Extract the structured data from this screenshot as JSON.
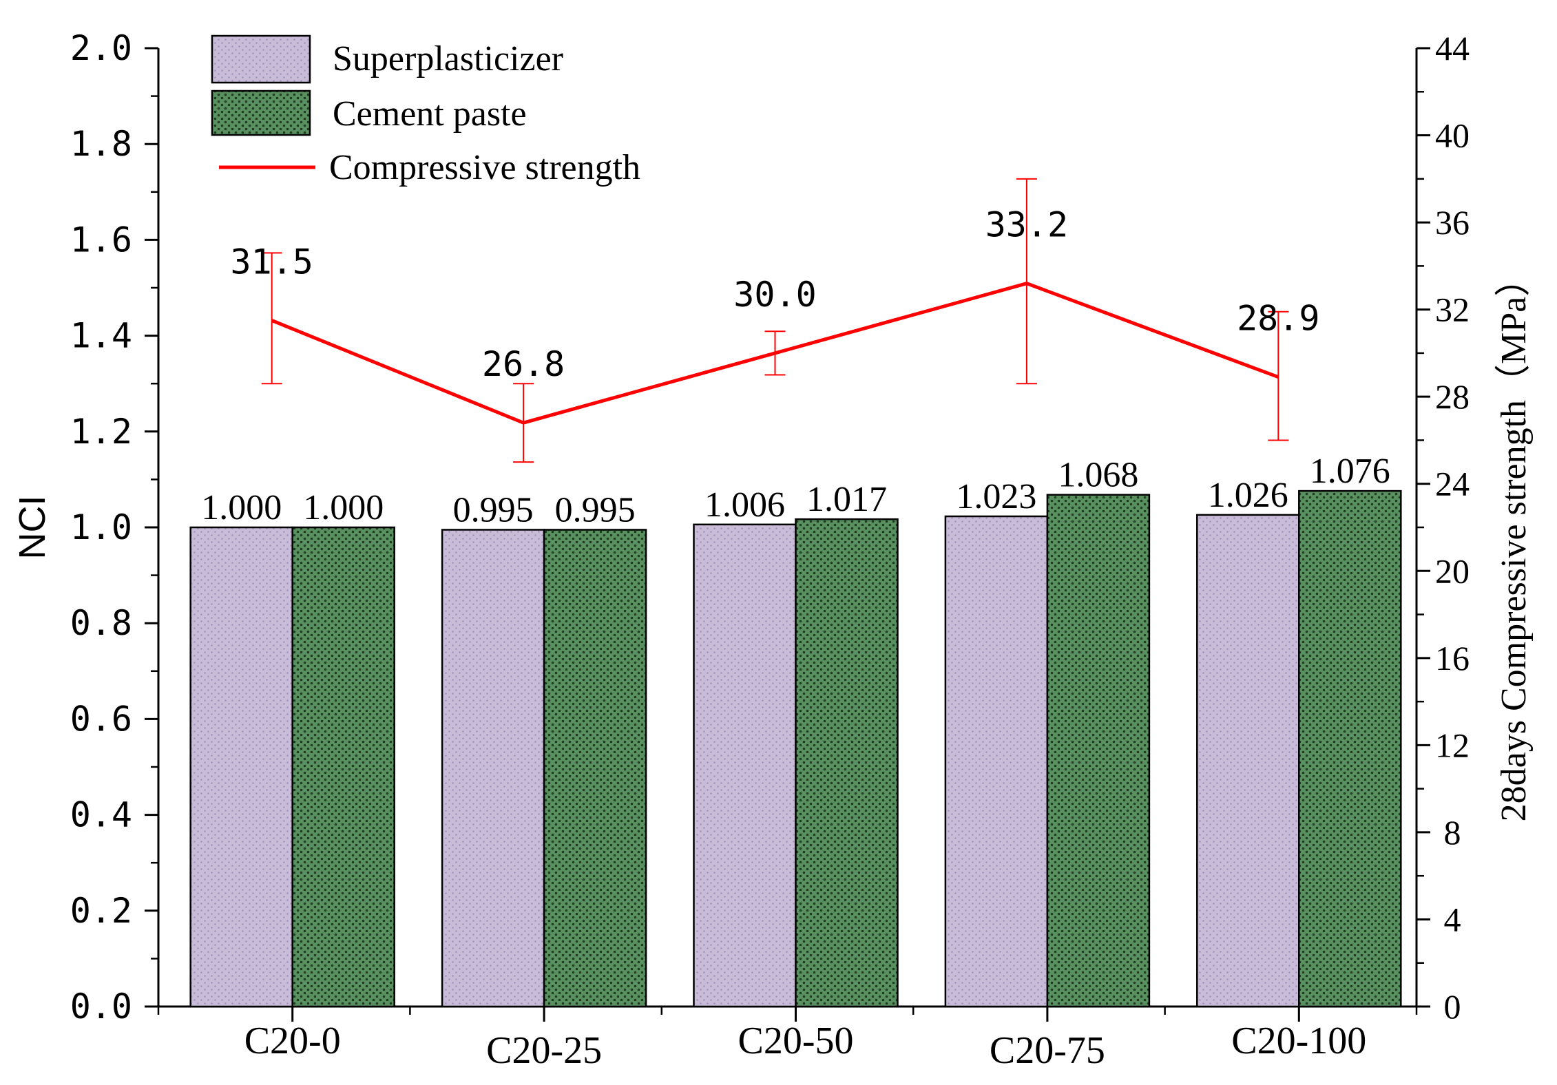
{
  "chart_data": {
    "type": "bar",
    "categories": [
      "C20-0",
      "C20-25",
      "C20-50",
      "C20-75",
      "C20-100"
    ],
    "series": [
      {
        "name": "Superplasticizer",
        "axis": "left",
        "values": [
          1.0,
          0.995,
          1.006,
          1.023,
          1.026
        ],
        "labels": [
          "1.000",
          "0.995",
          "1.006",
          "1.023",
          "1.026"
        ],
        "color": "#c3b6d6"
      },
      {
        "name": "Cement paste",
        "axis": "left",
        "values": [
          1.0,
          0.995,
          1.017,
          1.068,
          1.076
        ],
        "labels": [
          "1.000",
          "0.995",
          "1.017",
          "1.068",
          "1.076"
        ],
        "color": "#4f8a55"
      },
      {
        "name": "Compressive strength",
        "type": "line",
        "axis": "right",
        "values": [
          31.5,
          26.8,
          30.0,
          33.2,
          28.9
        ],
        "labels": [
          "31.5",
          "26.8",
          "30.0",
          "33.2",
          "28.9"
        ],
        "error": [
          [
            28.6,
            34.6
          ],
          [
            25.0,
            28.6
          ],
          [
            29.0,
            31.0
          ],
          [
            28.6,
            38.0
          ],
          [
            26.0,
            31.9
          ]
        ],
        "color": "#ff0000"
      }
    ],
    "y_left": {
      "label": "NCI",
      "range": [
        0.0,
        2.0
      ],
      "ticks": [
        0.0,
        0.2,
        0.4,
        0.6,
        0.8,
        1.0,
        1.2,
        1.4,
        1.6,
        1.8,
        2.0
      ],
      "tick_labels": [
        "0.0",
        "0.2",
        "0.4",
        "0.6",
        "0.8",
        "1.0",
        "1.2",
        "1.4",
        "1.6",
        "1.8",
        "2.0"
      ]
    },
    "y_right": {
      "label": "28days Compressive strength（MPa）",
      "range": [
        0,
        44
      ],
      "ticks": [
        0,
        4,
        8,
        12,
        16,
        20,
        24,
        28,
        32,
        36,
        40,
        44
      ],
      "tick_labels": [
        "0",
        "4",
        "8",
        "12",
        "16",
        "20",
        "24",
        "28",
        "32",
        "36",
        "40",
        "44"
      ]
    },
    "legend": {
      "position": "top-left",
      "entries": [
        "Superplasticizer",
        "Cement paste",
        "Compressive strength"
      ]
    },
    "title": "",
    "grid": false
  }
}
